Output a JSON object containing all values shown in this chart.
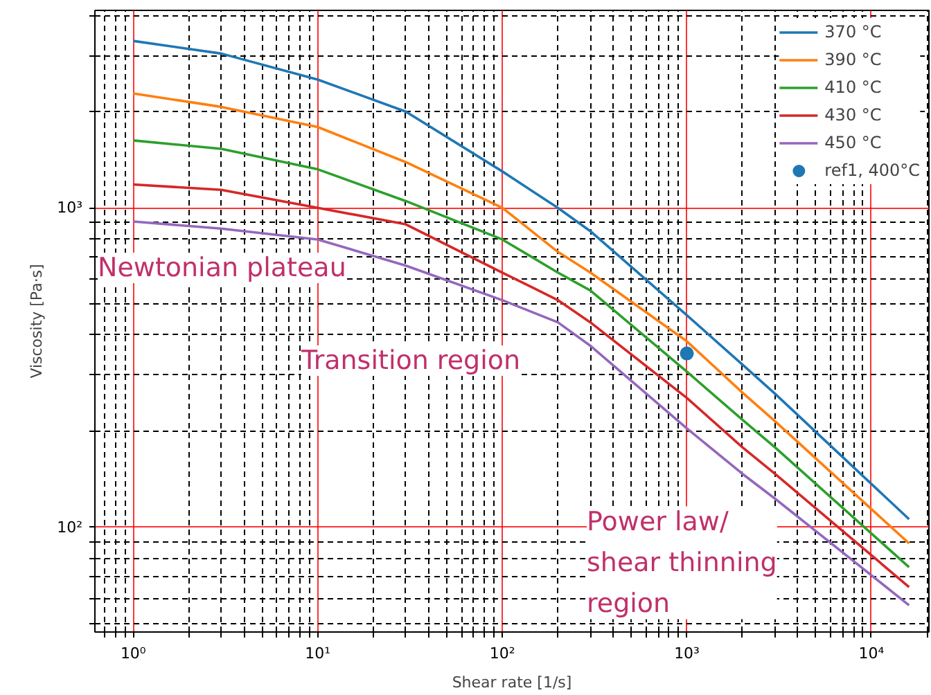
{
  "chart_data": {
    "type": "line",
    "xlabel": "Shear rate [1/s]",
    "ylabel": "Viscosity [Pa·s]",
    "log": "xy",
    "grid": true,
    "legend": "top right",
    "line_style": "solid",
    "xlim": [
      0.62,
      20500
    ],
    "ylim": [
      47,
      4150
    ],
    "xticks": [
      {
        "value": 0.7,
        "label": null
      },
      {
        "value": 0.8,
        "label": null
      },
      {
        "value": 0.9,
        "label": null
      },
      {
        "value": 1,
        "label": "10⁰"
      },
      {
        "value": 2,
        "label": null
      },
      {
        "value": 3,
        "label": null
      },
      {
        "value": 4,
        "label": null
      },
      {
        "value": 5,
        "label": null
      },
      {
        "value": 6,
        "label": null
      },
      {
        "value": 7,
        "label": null
      },
      {
        "value": 8,
        "label": null
      },
      {
        "value": 9,
        "label": null
      },
      {
        "value": 10,
        "label": "10¹"
      },
      {
        "value": 20,
        "label": null
      },
      {
        "value": 30,
        "label": null
      },
      {
        "value": 40,
        "label": null
      },
      {
        "value": 50,
        "label": null
      },
      {
        "value": 60,
        "label": null
      },
      {
        "value": 70,
        "label": null
      },
      {
        "value": 80,
        "label": null
      },
      {
        "value": 90,
        "label": null
      },
      {
        "value": 100,
        "label": "10²"
      },
      {
        "value": 200,
        "label": null
      },
      {
        "value": 300,
        "label": null
      },
      {
        "value": 400,
        "label": null
      },
      {
        "value": 500,
        "label": null
      },
      {
        "value": 600,
        "label": null
      },
      {
        "value": 700,
        "label": null
      },
      {
        "value": 800,
        "label": null
      },
      {
        "value": 900,
        "label": null
      },
      {
        "value": 1000,
        "label": "10³"
      },
      {
        "value": 2000,
        "label": null
      },
      {
        "value": 3000,
        "label": null
      },
      {
        "value": 4000,
        "label": null
      },
      {
        "value": 5000,
        "label": null
      },
      {
        "value": 6000,
        "label": null
      },
      {
        "value": 7000,
        "label": null
      },
      {
        "value": 8000,
        "label": null
      },
      {
        "value": 9000,
        "label": null
      },
      {
        "value": 10000,
        "label": "10⁴"
      },
      {
        "value": 20000,
        "label": null
      }
    ],
    "yticks": [
      {
        "value": 50,
        "label": null
      },
      {
        "value": 60,
        "label": null
      },
      {
        "value": 70,
        "label": null
      },
      {
        "value": 80,
        "label": null
      },
      {
        "value": 90,
        "label": null
      },
      {
        "value": 100,
        "label": "10²"
      },
      {
        "value": 200,
        "label": null
      },
      {
        "value": 300,
        "label": null
      },
      {
        "value": 400,
        "label": null
      },
      {
        "value": 500,
        "label": null
      },
      {
        "value": 600,
        "label": null
      },
      {
        "value": 700,
        "label": null
      },
      {
        "value": 800,
        "label": null
      },
      {
        "value": 900,
        "label": null
      },
      {
        "value": 1000,
        "label": "10³"
      },
      {
        "value": 2000,
        "label": null
      },
      {
        "value": 3000,
        "label": null
      },
      {
        "value": 4000,
        "label": null
      }
    ],
    "series": [
      {
        "name": "370 °C",
        "color": "#1f77b4",
        "x": [
          1,
          3,
          10,
          30,
          100,
          200,
          300,
          1000,
          2000,
          3000,
          16000
        ],
        "values": [
          3330,
          3040,
          2520,
          2000,
          1300,
          1000,
          845,
          461,
          323,
          262,
          106
        ]
      },
      {
        "name": "390 °C",
        "color": "#ff7f0e",
        "x": [
          1,
          3,
          10,
          30,
          100,
          200,
          300,
          1000,
          2000,
          3000,
          16000
        ],
        "values": [
          2280,
          2070,
          1790,
          1390,
          1000,
          728,
          627,
          382,
          264,
          215,
          89
        ]
      },
      {
        "name": "410 °C",
        "color": "#2ca02c",
        "x": [
          1,
          3,
          10,
          30,
          100,
          200,
          300,
          1000,
          2000,
          3000,
          16000
        ],
        "values": [
          1625,
          1530,
          1320,
          1050,
          796,
          627,
          551,
          307,
          217,
          178,
          75
        ]
      },
      {
        "name": "430 °C",
        "color": "#d62728",
        "x": [
          1,
          3,
          10,
          30,
          100,
          200,
          300,
          1000,
          2000,
          3000,
          16000
        ],
        "values": [
          1183,
          1138,
          1000,
          888,
          627,
          514,
          438,
          254,
          178,
          147,
          65
        ]
      },
      {
        "name": "450 °C",
        "color": "#9467bd",
        "x": [
          1,
          3,
          10,
          30,
          100,
          200,
          300,
          1000,
          2000,
          3000,
          16000
        ],
        "values": [
          906,
          861,
          796,
          659,
          514,
          438,
          370,
          204,
          147,
          123,
          57
        ]
      },
      {
        "name": "ref1, 400°C",
        "type": "scatter",
        "color": "#1f77b4",
        "x": [
          1000
        ],
        "values": [
          350
        ]
      }
    ],
    "annotations": [
      "Newtonian plateau",
      "Transition region",
      "Power law/\nshear thinning\nregion"
    ]
  }
}
